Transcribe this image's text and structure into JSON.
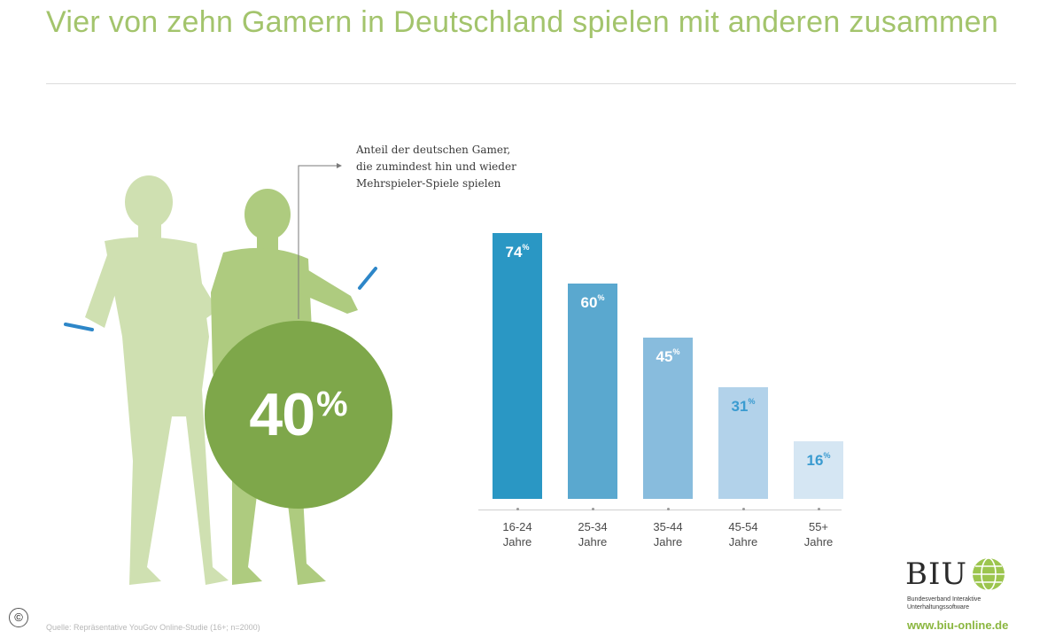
{
  "title": "Vier von zehn Gamern in Deutschland spielen mit anderen zusammen",
  "highlight": {
    "value": "40",
    "unit": "%"
  },
  "annotation": [
    "Anteil der deutschen Gamer,",
    "die zumindest hin und wieder",
    "Mehrspieler-Spiele spielen"
  ],
  "chart_data": {
    "type": "bar",
    "title": "",
    "xlabel": "",
    "ylabel": "",
    "categories": [
      {
        "line1": "16-24",
        "line2": "Jahre"
      },
      {
        "line1": "25-34",
        "line2": "Jahre"
      },
      {
        "line1": "35-44",
        "line2": "Jahre"
      },
      {
        "line1": "45-54",
        "line2": "Jahre"
      },
      {
        "line1": "55+",
        "line2": "Jahre"
      }
    ],
    "values": [
      74,
      60,
      45,
      31,
      16
    ],
    "value_unit": "%",
    "ylim": [
      0,
      74
    ],
    "bar_colors": [
      "#2a97c4",
      "#5aa8cf",
      "#88bcdd",
      "#b2d2ea",
      "#d5e6f3"
    ],
    "label_colors": [
      "#ffffff",
      "#ffffff",
      "#ffffff",
      "#3a9bd0",
      "#3a9bd0"
    ]
  },
  "colors": {
    "accent_green": "#7ea74a",
    "title_green": "#a3c46c",
    "figure_green": "#b7d08a"
  },
  "footer": {
    "logo": "BIU",
    "org_lines": [
      "Bundesverband Interaktive",
      "Unterhaltungssoftware"
    ],
    "url": "www.biu-online.de",
    "source": "Quelle: Repräsentative YouGov Online-Studie (16+; n=2000)",
    "copyright": "©"
  }
}
